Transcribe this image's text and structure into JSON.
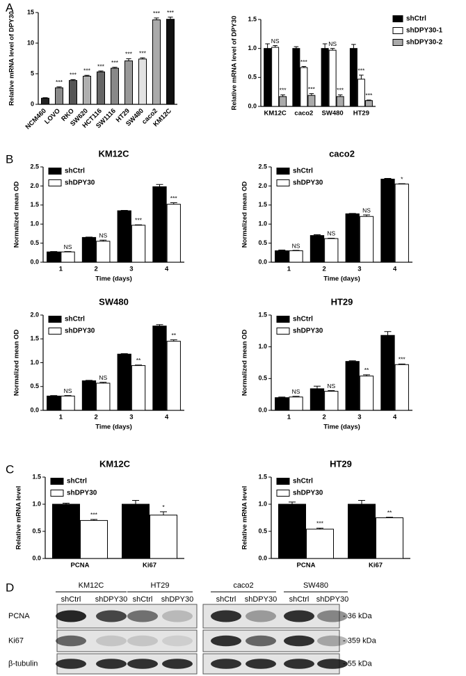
{
  "panel_labels": [
    "A",
    "B",
    "C",
    "D"
  ],
  "chart_data": [
    {
      "type": "bar",
      "ylabel": "Relative mRNA level of DPY30",
      "xtick_rotation": 45,
      "categories": [
        "NCM460",
        "LOVO",
        "RKO",
        "SW620",
        "HCT116",
        "SW1116",
        "HT29",
        "SW480",
        "caco2",
        "KM12C"
      ],
      "series": [
        {
          "colors": [
            "#222222",
            "#8a8a8a",
            "#555555",
            "#b0b0b0",
            "#666666",
            "#888888",
            "#999999",
            "#e2e2e2",
            "#aaaaaa",
            "#111111"
          ],
          "values": [
            1.0,
            2.7,
            3.9,
            4.6,
            5.3,
            5.9,
            7.1,
            7.4,
            13.8,
            13.9
          ],
          "errors": [
            0.1,
            0.15,
            0.15,
            0.15,
            0.15,
            0.15,
            0.35,
            0.2,
            0.3,
            0.35
          ],
          "annotations": [
            null,
            "***",
            "***",
            "***",
            "***",
            "***",
            "***",
            "***",
            "***",
            "***"
          ]
        }
      ],
      "ylim": [
        0,
        15
      ],
      "yticks": [
        0,
        5,
        10,
        15
      ]
    },
    {
      "type": "bar",
      "ylabel": "Relative mRNA level of DPY30",
      "legend": "right outside",
      "categories": [
        "KM12C",
        "caco2",
        "SW480",
        "HT29"
      ],
      "series": [
        {
          "name": "shCtrl",
          "color": "#000000",
          "values": [
            1.0,
            1.0,
            1.0,
            1.0
          ],
          "errors": [
            0.08,
            0.03,
            0.08,
            0.07
          ],
          "annotations": [
            null,
            null,
            null,
            null
          ]
        },
        {
          "name": "shDPY30-1",
          "color": "#ffffff",
          "values": [
            1.02,
            0.67,
            0.97,
            0.47
          ],
          "errors": [
            0.03,
            0.02,
            0.03,
            0.07
          ],
          "annotations": [
            "NS",
            "***",
            "NS",
            "***"
          ]
        },
        {
          "name": "shDPY30-2",
          "color": "#aaaaaa",
          "values": [
            0.17,
            0.19,
            0.17,
            0.1
          ],
          "errors": [
            0.03,
            0.03,
            0.03,
            0.01
          ],
          "annotations": [
            "***",
            "***",
            "***",
            "***"
          ]
        }
      ],
      "ylim": [
        0,
        1.5
      ],
      "yticks": [
        {
          "value": 0,
          "label": "0.0"
        },
        0.5,
        {
          "value": 1,
          "label": "1.0"
        },
        1.5
      ]
    },
    {
      "type": "bar",
      "title": "KM12C",
      "ylabel": "Normalized mean OD",
      "xlabel": "Time (days)",
      "legend": "upper left",
      "categories": [
        "1",
        "2",
        "3",
        "4"
      ],
      "series": [
        {
          "name": "shCtrl",
          "color": "#000000",
          "values": [
            0.27,
            0.65,
            1.35,
            1.98
          ],
          "errors": [
            0.01,
            0.01,
            0.01,
            0.06
          ],
          "annotations": [
            null,
            null,
            null,
            null
          ]
        },
        {
          "name": "shDPY30",
          "color": "#ffffff",
          "values": [
            0.27,
            0.55,
            0.97,
            1.52
          ],
          "errors": [
            0.01,
            0.03,
            0.01,
            0.04
          ],
          "annotations": [
            "NS",
            "NS",
            "***",
            "***"
          ]
        }
      ],
      "ylim": [
        0,
        2.5
      ],
      "yticks": [
        {
          "value": 0,
          "label": "0.0"
        },
        0.5,
        {
          "value": 1,
          "label": "1.0"
        },
        1.5,
        {
          "value": 2,
          "label": "2.0"
        },
        2.5
      ]
    },
    {
      "type": "bar",
      "title": "caco2",
      "ylabel": "Normalized mean OD",
      "xlabel": "Time (days)",
      "legend": "upper left",
      "categories": [
        "1",
        "2",
        "3",
        "4"
      ],
      "series": [
        {
          "name": "shCtrl",
          "color": "#000000",
          "values": [
            0.3,
            0.7,
            1.27,
            2.18
          ],
          "errors": [
            0.02,
            0.02,
            0.01,
            0.02
          ],
          "annotations": [
            null,
            null,
            null,
            null
          ]
        },
        {
          "name": "shDPY30",
          "color": "#ffffff",
          "values": [
            0.3,
            0.62,
            1.2,
            2.05
          ],
          "errors": [
            0.01,
            0.01,
            0.04,
            0.01
          ],
          "annotations": [
            "NS",
            "NS",
            "NS",
            "*"
          ]
        }
      ],
      "ylim": [
        0,
        2.5
      ],
      "yticks": [
        {
          "value": 0,
          "label": "0.0"
        },
        0.5,
        {
          "value": 1,
          "label": "1.0"
        },
        1.5,
        {
          "value": 2,
          "label": "2.0"
        },
        2.5
      ]
    },
    {
      "type": "bar",
      "title": "SW480",
      "ylabel": "Normalized mean OD",
      "xlabel": "Time (days)",
      "legend": "upper left",
      "categories": [
        "1",
        "2",
        "3",
        "4"
      ],
      "series": [
        {
          "name": "shCtrl",
          "color": "#000000",
          "values": [
            0.3,
            0.62,
            1.18,
            1.77
          ],
          "errors": [
            0.01,
            0.01,
            0.01,
            0.03
          ],
          "annotations": [
            null,
            null,
            null,
            null
          ]
        },
        {
          "name": "shDPY30",
          "color": "#ffffff",
          "values": [
            0.3,
            0.57,
            0.94,
            1.45
          ],
          "errors": [
            0.01,
            0.02,
            0.01,
            0.03
          ],
          "annotations": [
            "NS",
            "NS",
            "**",
            "**"
          ]
        }
      ],
      "ylim": [
        0,
        2
      ],
      "yticks": [
        {
          "value": 0,
          "label": "0.0"
        },
        0.5,
        {
          "value": 1,
          "label": "1.0"
        },
        1.5,
        {
          "value": 2,
          "label": "2.0"
        }
      ]
    },
    {
      "type": "bar",
      "title": "HT29",
      "ylabel": "Normalized mean OD",
      "xlabel": "Time (days)",
      "legend": "upper left",
      "categories": [
        "1",
        "2",
        "3",
        "4"
      ],
      "series": [
        {
          "name": "shCtrl",
          "color": "#000000",
          "values": [
            0.2,
            0.34,
            0.77,
            1.18
          ],
          "errors": [
            0.01,
            0.04,
            0.01,
            0.06
          ],
          "annotations": [
            null,
            null,
            null,
            null
          ]
        },
        {
          "name": "shDPY30",
          "color": "#ffffff",
          "values": [
            0.21,
            0.3,
            0.54,
            0.72
          ],
          "errors": [
            0.01,
            0.01,
            0.02,
            0.01
          ],
          "annotations": [
            "NS",
            "NS",
            "**",
            "***"
          ]
        }
      ],
      "ylim": [
        0,
        1.5
      ],
      "yticks": [
        {
          "value": 0,
          "label": "0.0"
        },
        0.5,
        {
          "value": 1,
          "label": "1.0"
        },
        1.5
      ]
    },
    {
      "type": "bar",
      "title": "KM12C",
      "ylabel": "Relative mRNA level",
      "legend": "upper left",
      "categories": [
        "PCNA",
        "Ki67"
      ],
      "series": [
        {
          "name": "shCtrl",
          "color": "#000000",
          "values": [
            1.0,
            1.0
          ],
          "errors": [
            0.02,
            0.07
          ],
          "annotations": [
            null,
            null
          ]
        },
        {
          "name": "shDPY30",
          "color": "#ffffff",
          "values": [
            0.7,
            0.8
          ],
          "errors": [
            0.02,
            0.06
          ],
          "annotations": [
            "***",
            "*"
          ]
        }
      ],
      "ylim": [
        0,
        1.5
      ],
      "yticks": [
        {
          "value": 0,
          "label": "0.0"
        },
        0.5,
        {
          "value": 1,
          "label": "1.0"
        },
        1.5
      ]
    },
    {
      "type": "bar",
      "title": "HT29",
      "ylabel": "Relative mRNA level",
      "legend": "upper left",
      "categories": [
        "PCNA",
        "Ki67"
      ],
      "series": [
        {
          "name": "shCtrl",
          "color": "#000000",
          "values": [
            1.0,
            1.0
          ],
          "errors": [
            0.04,
            0.07
          ],
          "annotations": [
            null,
            null
          ]
        },
        {
          "name": "shDPY30",
          "color": "#ffffff",
          "values": [
            0.54,
            0.75
          ],
          "errors": [
            0.02,
            0.01
          ],
          "annotations": [
            "***",
            "**"
          ]
        }
      ],
      "ylim": [
        0,
        1.5
      ],
      "yticks": [
        {
          "value": 0,
          "label": "0.0"
        },
        0.5,
        {
          "value": 1,
          "label": "1.0"
        },
        1.5
      ]
    }
  ],
  "blot": {
    "groups": [
      {
        "name": "KM12C",
        "lanes": [
          "shCtrl",
          "shDPY30"
        ]
      },
      {
        "name": "HT29",
        "lanes": [
          "shCtrl",
          "shDPY30"
        ]
      },
      {
        "name": "caco2",
        "lanes": [
          "shCtrl",
          "shDPY30"
        ]
      },
      {
        "name": "SW480",
        "lanes": [
          "shCtrl",
          "shDPY30"
        ]
      }
    ],
    "rows": [
      "PCNA",
      "Ki67",
      "β-tubulin"
    ],
    "sizes": [
      "- 36 kDa",
      "- 359 kDa",
      "- 55 kDa"
    ]
  }
}
